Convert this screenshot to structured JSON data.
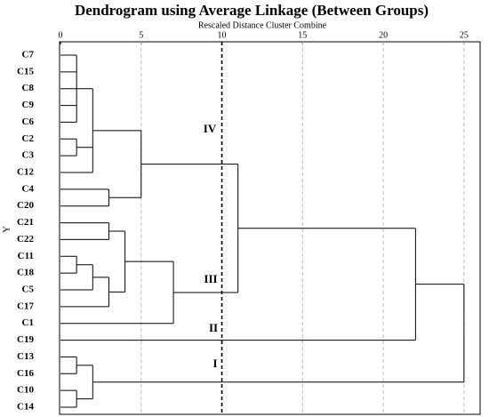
{
  "chart_data": {
    "type": "dendrogram",
    "title": "Dendrogram using Average Linkage (Between Groups)",
    "x_label": "Rescaled Distance Cluster Combine",
    "y_label": "Y",
    "xlim": [
      0,
      26
    ],
    "xticks": [
      0,
      5,
      10,
      15,
      20,
      25
    ],
    "grid": true,
    "cut": 10,
    "leaves": [
      "C7",
      "C15",
      "C8",
      "C9",
      "C6",
      "C2",
      "C3",
      "C12",
      "C4",
      "C20",
      "C21",
      "C22",
      "C11",
      "C18",
      "C5",
      "C17",
      "C1",
      "C19",
      "C13",
      "C16",
      "C10",
      "C14"
    ],
    "merges": [
      {
        "children": [
          0,
          1,
          2,
          3,
          4
        ],
        "height": 1
      },
      {
        "children": [
          5,
          6
        ],
        "height": 1
      },
      {
        "children": [
          22,
          23,
          7
        ],
        "height": 2
      },
      {
        "children": [
          8,
          9
        ],
        "height": 3
      },
      {
        "children": [
          24,
          25
        ],
        "height": 5
      },
      {
        "children": [
          10,
          11
        ],
        "height": 3
      },
      {
        "children": [
          12,
          13
        ],
        "height": 1
      },
      {
        "children": [
          28,
          14
        ],
        "height": 2
      },
      {
        "children": [
          29,
          15
        ],
        "height": 3
      },
      {
        "children": [
          27,
          30
        ],
        "height": 4
      },
      {
        "children": [
          31,
          16
        ],
        "height": 7
      },
      {
        "children": [
          26,
          32
        ],
        "height": 11
      },
      {
        "children": [
          33,
          17
        ],
        "height": 22
      },
      {
        "children": [
          18,
          19
        ],
        "height": 1
      },
      {
        "children": [
          20,
          21
        ],
        "height": 1
      },
      {
        "children": [
          35,
          36
        ],
        "height": 2
      },
      {
        "children": [
          34,
          37
        ],
        "height": 25
      }
    ],
    "cluster_labels": [
      "IV",
      "III",
      "II",
      "I"
    ]
  }
}
